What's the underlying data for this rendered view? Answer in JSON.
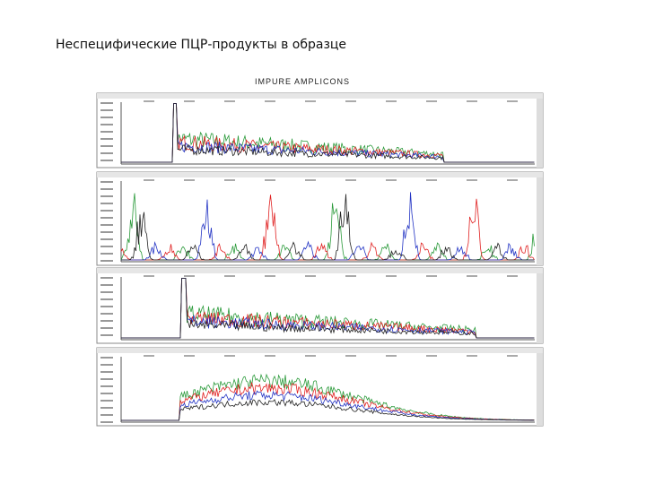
{
  "slide": {
    "title": "Неспецифические ПЦР-продукты в образце",
    "figure": {
      "caption": "IMPURE AMPLICONS"
    }
  }
}
